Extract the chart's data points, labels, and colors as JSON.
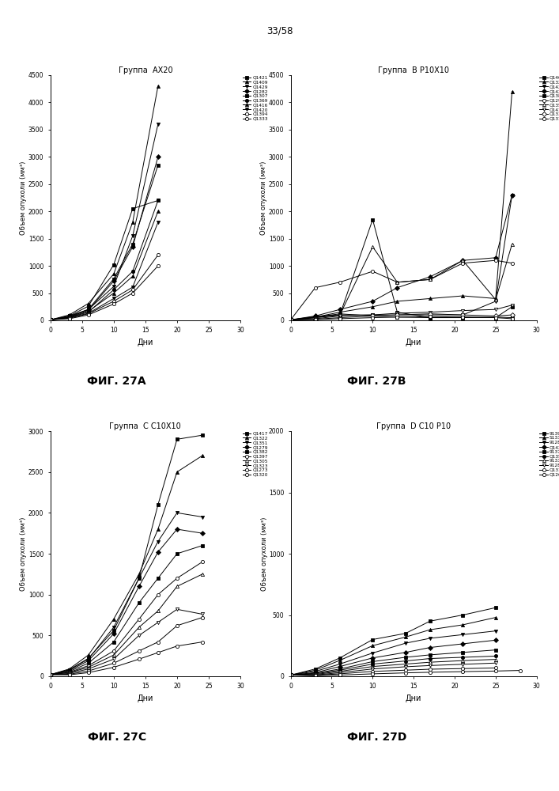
{
  "page_header": "33/58",
  "subplots": [
    {
      "title_prefix": "Группа  ",
      "title_bold": "АX20",
      "xlabel": "Дни",
      "ylabel": "Объем опухоли (мм³)",
      "ylim": [
        0,
        4500
      ],
      "yticks": [
        0,
        500,
        1000,
        1500,
        2000,
        2500,
        3000,
        3500,
        4000,
        4500
      ],
      "xlim": [
        0,
        30
      ],
      "xticks": [
        0,
        5,
        10,
        15,
        20,
        25,
        30
      ],
      "fig_label": "ФИГ. 27А",
      "series": [
        {
          "label": "Q1421",
          "marker": "s",
          "filled": true,
          "x": [
            0,
            3,
            6,
            10,
            13,
            17
          ],
          "y": [
            10,
            80,
            260,
            1020,
            2050,
            2200
          ]
        },
        {
          "label": "Q1409",
          "marker": "^",
          "filled": true,
          "x": [
            0,
            3,
            6,
            10,
            13,
            17
          ],
          "y": [
            10,
            100,
            310,
            850,
            1800,
            4300
          ]
        },
        {
          "label": "Q1429",
          "marker": "v",
          "filled": true,
          "x": [
            0,
            3,
            6,
            10,
            13,
            17
          ],
          "y": [
            10,
            80,
            200,
            620,
            1550,
            3600
          ]
        },
        {
          "label": "Q1282",
          "marker": "D",
          "filled": true,
          "x": [
            0,
            3,
            6,
            10,
            13,
            17
          ],
          "y": [
            10,
            65,
            185,
            720,
            1350,
            3000
          ]
        },
        {
          "label": "Q1307",
          "marker": "s",
          "filled": true,
          "x": [
            0,
            3,
            6,
            10,
            13,
            17
          ],
          "y": [
            10,
            70,
            200,
            760,
            1400,
            2850
          ]
        },
        {
          "label": "Q1369",
          "marker": "o",
          "filled": true,
          "x": [
            0,
            3,
            6,
            10,
            13,
            17
          ],
          "y": [
            10,
            55,
            150,
            560,
            900,
            2200
          ]
        },
        {
          "label": "Q1416",
          "marker": "^",
          "filled": true,
          "x": [
            0,
            3,
            6,
            10,
            13,
            17
          ],
          "y": [
            10,
            60,
            165,
            500,
            810,
            2000
          ]
        },
        {
          "label": "Q1420",
          "marker": "v",
          "filled": true,
          "x": [
            0,
            3,
            6,
            10,
            13,
            17
          ],
          "y": [
            10,
            50,
            130,
            400,
            610,
            1800
          ]
        },
        {
          "label": "Q1394",
          "marker": "o",
          "filled": false,
          "x": [
            0,
            3,
            6,
            10,
            13,
            17
          ],
          "y": [
            10,
            40,
            120,
            350,
            560,
            1200
          ]
        },
        {
          "label": "Q1333",
          "marker": "o",
          "filled": false,
          "x": [
            0,
            3,
            6,
            10,
            13,
            17
          ],
          "y": [
            10,
            30,
            100,
            300,
            500,
            1000
          ]
        }
      ]
    },
    {
      "title_prefix": "Группа  ",
      "title_bold": "B P10X10",
      "xlabel": "Дни",
      "ylabel": "Объем опухоли (мм³)",
      "ylim": [
        0,
        4500
      ],
      "yticks": [
        0,
        500,
        1000,
        1500,
        2000,
        2500,
        3000,
        3500,
        4000,
        4500
      ],
      "xlim": [
        0,
        30
      ],
      "xticks": [
        0,
        5,
        10,
        15,
        20,
        25,
        30
      ],
      "fig_label": "ФИГ. 27B",
      "series": [
        {
          "label": "Q1408",
          "marker": "s",
          "filled": true,
          "x": [
            0,
            3,
            6,
            10,
            13,
            17,
            21,
            25,
            27
          ],
          "y": [
            10,
            50,
            100,
            1850,
            150,
            50,
            60,
            50,
            250
          ]
        },
        {
          "label": "Q1321",
          "marker": "^",
          "filled": true,
          "x": [
            0,
            3,
            6,
            10,
            13,
            17,
            21,
            25,
            27
          ],
          "y": [
            10,
            60,
            150,
            250,
            350,
            400,
            450,
            400,
            4200
          ]
        },
        {
          "label": "Q1423",
          "marker": "v",
          "filled": true,
          "x": [
            0,
            3,
            6,
            10,
            13,
            17,
            21,
            25,
            27
          ],
          "y": [
            10,
            70,
            100,
            100,
            100,
            100,
            100,
            350,
            2300
          ]
        },
        {
          "label": "Q1428",
          "marker": "D",
          "filled": true,
          "x": [
            0,
            3,
            6,
            10,
            13,
            17,
            21,
            25,
            27
          ],
          "y": [
            10,
            80,
            200,
            350,
            600,
            800,
            1100,
            1150,
            2300
          ]
        },
        {
          "label": "Q1384",
          "marker": "s",
          "filled": true,
          "x": [
            0,
            3,
            6,
            10,
            13,
            17,
            21,
            25,
            27
          ],
          "y": [
            10,
            60,
            120,
            80,
            60,
            50,
            50,
            60,
            50
          ]
        },
        {
          "label": "Q1290",
          "marker": "o",
          "filled": false,
          "x": [
            0,
            3,
            6,
            10,
            13,
            17,
            21,
            25,
            27
          ],
          "y": [
            10,
            600,
            700,
            900,
            700,
            750,
            1050,
            1100,
            1050
          ]
        },
        {
          "label": "Q1354",
          "marker": "^",
          "filled": false,
          "x": [
            0,
            3,
            6,
            10,
            13,
            17,
            21,
            25,
            27
          ],
          "y": [
            10,
            50,
            100,
            1350,
            700,
            750,
            1100,
            380,
            1400
          ]
        },
        {
          "label": "Q1411",
          "marker": "v",
          "filled": false,
          "x": [
            0,
            3,
            6,
            10,
            13,
            17,
            21,
            25,
            27
          ],
          "y": [
            10,
            30,
            80,
            100,
            130,
            150,
            180,
            200,
            280
          ]
        },
        {
          "label": "Q1336",
          "marker": "D",
          "filled": false,
          "x": [
            0,
            3,
            6,
            10,
            13,
            17,
            21,
            25,
            27
          ],
          "y": [
            10,
            20,
            50,
            80,
            100,
            120,
            100,
            80,
            100
          ]
        },
        {
          "label": "Q1318",
          "marker": "o",
          "filled": false,
          "x": [
            0,
            3,
            6,
            10,
            13,
            17,
            21,
            25,
            27
          ],
          "y": [
            10,
            15,
            30,
            50,
            60,
            70,
            60,
            50,
            30
          ]
        }
      ]
    },
    {
      "title_prefix": "Группа  ",
      "title_bold": "C C10X10",
      "xlabel": "Дни",
      "ylabel": "Объем опухоли (мм³)",
      "ylim": [
        0,
        3000
      ],
      "yticks": [
        0,
        500,
        1000,
        1500,
        2000,
        2500,
        3000
      ],
      "xlim": [
        0,
        30
      ],
      "xticks": [
        0,
        5,
        10,
        15,
        20,
        25,
        30
      ],
      "fig_label": "ФИГ. 27C",
      "series": [
        {
          "label": "Q1417",
          "marker": "s",
          "filled": true,
          "x": [
            0,
            3,
            6,
            10,
            14,
            17,
            20,
            24
          ],
          "y": [
            20,
            80,
            220,
            560,
            1200,
            2100,
            2900,
            2950
          ]
        },
        {
          "label": "Q1322",
          "marker": "^",
          "filled": true,
          "x": [
            0,
            3,
            6,
            10,
            14,
            17,
            20,
            24
          ],
          "y": [
            20,
            90,
            260,
            700,
            1250,
            1800,
            2500,
            2700
          ]
        },
        {
          "label": "Q1351",
          "marker": "v",
          "filled": true,
          "x": [
            0,
            3,
            6,
            10,
            14,
            17,
            20,
            24
          ],
          "y": [
            20,
            80,
            210,
            600,
            1200,
            1650,
            2000,
            1950
          ]
        },
        {
          "label": "Q1279",
          "marker": "D",
          "filled": true,
          "x": [
            0,
            3,
            6,
            10,
            14,
            17,
            20,
            24
          ],
          "y": [
            20,
            70,
            190,
            520,
            1100,
            1520,
            1800,
            1750
          ]
        },
        {
          "label": "Q1382",
          "marker": "s",
          "filled": true,
          "x": [
            0,
            3,
            6,
            10,
            14,
            17,
            20,
            24
          ],
          "y": [
            20,
            60,
            160,
            420,
            900,
            1200,
            1500,
            1600
          ]
        },
        {
          "label": "Q1397",
          "marker": "o",
          "filled": false,
          "x": [
            0,
            3,
            6,
            10,
            14,
            17,
            20,
            24
          ],
          "y": [
            20,
            50,
            130,
            310,
            700,
            1000,
            1200,
            1400
          ]
        },
        {
          "label": "Q1305",
          "marker": "^",
          "filled": false,
          "x": [
            0,
            3,
            6,
            10,
            14,
            17,
            20,
            24
          ],
          "y": [
            20,
            45,
            110,
            260,
            600,
            800,
            1100,
            1250
          ]
        },
        {
          "label": "Q1323",
          "marker": "v",
          "filled": false,
          "x": [
            0,
            3,
            6,
            10,
            14,
            17,
            20,
            24
          ],
          "y": [
            20,
            35,
            90,
            210,
            500,
            660,
            820,
            760
          ]
        },
        {
          "label": "Q1273",
          "marker": "o",
          "filled": false,
          "x": [
            0,
            3,
            6,
            10,
            14,
            17,
            20,
            24
          ],
          "y": [
            20,
            25,
            65,
            160,
            310,
            420,
            620,
            720
          ]
        },
        {
          "label": "Q1320",
          "marker": "o",
          "filled": false,
          "x": [
            0,
            3,
            6,
            10,
            14,
            17,
            20,
            24
          ],
          "y": [
            20,
            18,
            45,
            110,
            210,
            290,
            370,
            420
          ]
        }
      ]
    },
    {
      "title_prefix": "Группа  ",
      "title_bold": "D C10 P10",
      "xlabel": "Дни",
      "ylabel": "Объем опухоли (мм³)",
      "ylim": [
        0,
        2000
      ],
      "yticks": [
        0,
        500,
        1000,
        1500,
        2000
      ],
      "xlim": [
        0,
        30
      ],
      "xticks": [
        0,
        5,
        10,
        15,
        20,
        25,
        30
      ],
      "fig_label": "ФИГ. 27D",
      "series": [
        {
          "label": "91395",
          "marker": "s",
          "filled": true,
          "x": [
            0,
            3,
            6,
            10,
            14,
            17,
            21,
            25
          ],
          "y": [
            10,
            60,
            150,
            300,
            350,
            450,
            500,
            560
          ]
        },
        {
          "label": "S1339",
          "marker": "^",
          "filled": true,
          "x": [
            0,
            3,
            6,
            10,
            14,
            17,
            21,
            25
          ],
          "y": [
            10,
            50,
            130,
            250,
            320,
            380,
            420,
            480
          ]
        },
        {
          "label": "91287",
          "marker": "v",
          "filled": true,
          "x": [
            0,
            3,
            6,
            10,
            14,
            17,
            21,
            25
          ],
          "y": [
            10,
            40,
            100,
            190,
            270,
            310,
            340,
            370
          ]
        },
        {
          "label": "Q1424",
          "marker": "D",
          "filled": true,
          "x": [
            0,
            3,
            6,
            10,
            14,
            17,
            21,
            25
          ],
          "y": [
            10,
            30,
            80,
            150,
            195,
            235,
            265,
            295
          ]
        },
        {
          "label": "91375",
          "marker": "s",
          "filled": true,
          "x": [
            0,
            3,
            6,
            10,
            14,
            17,
            21,
            25
          ],
          "y": [
            10,
            25,
            60,
            120,
            155,
            175,
            195,
            215
          ]
        },
        {
          "label": "Q1354",
          "marker": "o",
          "filled": true,
          "x": [
            0,
            3,
            6,
            10,
            14,
            17,
            21,
            25
          ],
          "y": [
            10,
            20,
            50,
            100,
            125,
            145,
            155,
            165
          ]
        },
        {
          "label": "91331",
          "marker": "^",
          "filled": false,
          "x": [
            0,
            3,
            6,
            10,
            14,
            17,
            21,
            25
          ],
          "y": [
            10,
            15,
            40,
            80,
            100,
            115,
            128,
            138
          ]
        },
        {
          "label": "91284",
          "marker": "v",
          "filled": false,
          "x": [
            0,
            3,
            6,
            10,
            14,
            17,
            21,
            25
          ],
          "y": [
            10,
            10,
            30,
            60,
            78,
            88,
            98,
            108
          ]
        },
        {
          "label": "Q1315",
          "marker": "o",
          "filled": false,
          "x": [
            0,
            3,
            6,
            10,
            14,
            17,
            21,
            25
          ],
          "y": [
            10,
            8,
            20,
            40,
            50,
            58,
            63,
            68
          ]
        },
        {
          "label": "Q1268",
          "marker": "o",
          "filled": false,
          "x": [
            0,
            3,
            6,
            10,
            14,
            17,
            21,
            25,
            28
          ],
          "y": [
            10,
            5,
            10,
            20,
            28,
            33,
            38,
            43,
            48
          ]
        }
      ]
    }
  ]
}
